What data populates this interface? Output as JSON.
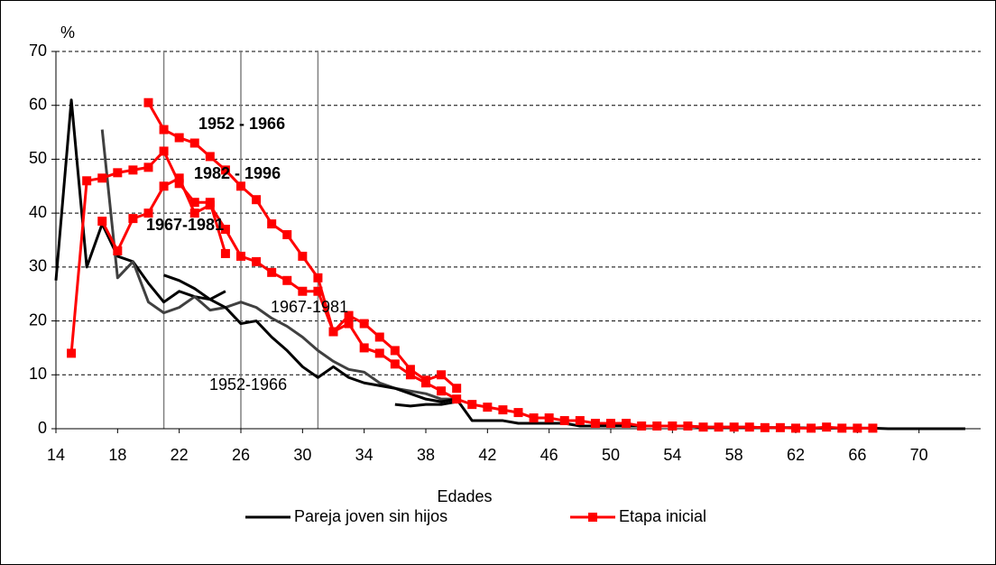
{
  "chart_data": {
    "type": "line",
    "y_label": "%",
    "x_label": "Edades",
    "xlim": [
      14,
      74
    ],
    "xticks": [
      14,
      18,
      22,
      26,
      30,
      34,
      38,
      42,
      46,
      50,
      54,
      58,
      62,
      66,
      70
    ],
    "ylim": [
      0,
      70
    ],
    "yticks": [
      0,
      10,
      20,
      30,
      40,
      50,
      60,
      70
    ],
    "grid": true,
    "reference_x": [
      21,
      26,
      31
    ],
    "legend": "bottom",
    "series": [
      {
        "name": "Pareja joven sin hijos",
        "color": "#000000",
        "marker": false,
        "lines": [
          {
            "color": "#000000",
            "x": [
              14,
              15,
              16,
              17,
              18,
              19,
              20,
              21,
              22,
              23,
              24,
              25
            ],
            "values": [
              27.5,
              61,
              30,
              38,
              32,
              31,
              27,
              23.5,
              25.5,
              24.5,
              24,
              25.5
            ]
          },
          {
            "color": "#404040",
            "x": [
              17,
              18,
              19,
              20,
              21,
              22,
              23,
              24,
              25,
              26,
              27,
              28,
              29,
              30,
              31,
              32,
              33,
              34,
              35,
              36,
              37,
              38,
              39,
              40
            ],
            "values": [
              55.5,
              28,
              31,
              23.5,
              21.5,
              22.5,
              24.5,
              22,
              22.5,
              23.5,
              22.5,
              20.5,
              19,
              17,
              14.5,
              12.5,
              11,
              10.5,
              8.5,
              7.5,
              7,
              6.5,
              5.5,
              5.5
            ]
          },
          {
            "color": "#000000",
            "x": [
              21,
              22,
              23,
              24,
              25,
              26,
              27,
              28,
              29,
              30,
              31,
              32,
              33,
              34,
              35,
              36,
              37,
              38,
              39,
              40,
              41,
              42,
              43,
              44,
              45,
              46,
              47,
              48,
              49,
              50,
              51,
              52,
              53,
              54,
              55,
              56,
              57,
              58,
              59,
              60,
              61,
              62,
              63,
              64,
              65,
              66,
              67,
              68,
              69,
              70,
              71,
              72,
              73
            ],
            "values": [
              28.5,
              27.5,
              26,
              24,
              22.5,
              19.5,
              20,
              17,
              14.5,
              11.5,
              9.5,
              11.5,
              9.5,
              8.5,
              8,
              7.5,
              6.5,
              5.5,
              5,
              5.5,
              1.5,
              1.5,
              1.5,
              1,
              1,
              1,
              1,
              0.5,
              0.5,
              0.5,
              0.5,
              0.5,
              0.5,
              0.5,
              0.5,
              0.3,
              0.3,
              0.3,
              0.3,
              0.2,
              0.2,
              0.2,
              0.1,
              0.1,
              0.1,
              0.1,
              0.1,
              0,
              0,
              0,
              0,
              0,
              0
            ]
          },
          {
            "color": "#000000",
            "x": [
              36,
              37,
              38,
              39,
              40
            ],
            "values": [
              4.5,
              4.2,
              4.5,
              4.5,
              5
            ]
          }
        ]
      },
      {
        "name": "Etapa inicial",
        "color": "#ff0000",
        "marker": true,
        "lines": [
          {
            "color": "#ff0000",
            "x": [
              15,
              16,
              17,
              18,
              19,
              20,
              21,
              22,
              23,
              24,
              25
            ],
            "values": [
              14,
              46,
              46.5,
              47.5,
              48,
              48.5,
              51.5,
              45.5,
              42,
              42,
              32.5
            ]
          },
          {
            "color": "#ff0000",
            "x": [
              20,
              21,
              22,
              23,
              24,
              25,
              26,
              27,
              28,
              29,
              30,
              31,
              32,
              33,
              34,
              35,
              36,
              37,
              38,
              39,
              40
            ],
            "values": [
              60.5,
              55.5,
              54,
              53,
              50.5,
              48,
              45,
              42.5,
              38,
              36,
              32,
              28,
              18,
              21,
              19.5,
              17,
              14.5,
              11,
              9,
              10,
              7.5
            ]
          },
          {
            "color": "#ff0000",
            "x": [
              17,
              18,
              19,
              20,
              21,
              22,
              23,
              24,
              25,
              26,
              27,
              28,
              29,
              30,
              31,
              32,
              33,
              34,
              35,
              36,
              37,
              38,
              39,
              40,
              41,
              42,
              43,
              44,
              45,
              46,
              47,
              48,
              49,
              50,
              51,
              52,
              53,
              54,
              55,
              56,
              57,
              58,
              59,
              60,
              61,
              62,
              63,
              64,
              65,
              66,
              67
            ],
            "values": [
              38.5,
              33,
              39,
              40,
              45,
              46.5,
              40,
              41.5,
              37,
              32,
              31,
              29,
              27.5,
              25.5,
              25.5,
              18,
              19.5,
              15,
              14,
              12,
              10,
              8.5,
              7,
              5.5,
              4.5,
              4,
              3.5,
              3,
              2,
              2,
              1.5,
              1.5,
              1,
              1,
              1,
              0.5,
              0.5,
              0.5,
              0.5,
              0.3,
              0.3,
              0.3,
              0.3,
              0.2,
              0.2,
              0.1,
              0.1,
              0.3,
              0.1,
              0.1,
              0.1
            ]
          }
        ]
      }
    ],
    "annotations": [
      {
        "text": "1952 - 1966",
        "bold": true
      },
      {
        "text": "1982 - 1996",
        "bold": true
      },
      {
        "text": "1967-1981",
        "bold": true
      },
      {
        "text": "1967-1981",
        "bold": false
      },
      {
        "text": "1952-1966",
        "bold": false
      }
    ]
  }
}
